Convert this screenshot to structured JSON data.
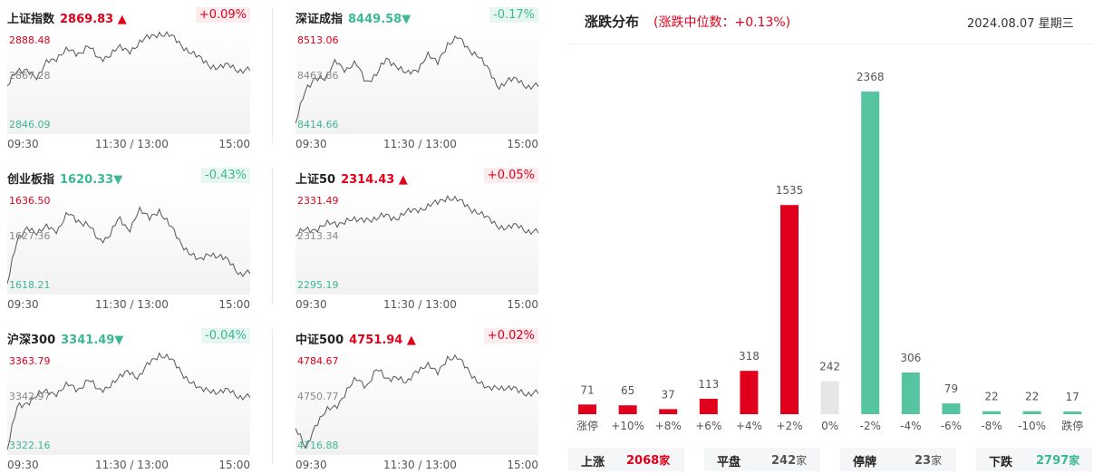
{
  "indices": [
    {
      "name": "上证指数",
      "value": "2869.83",
      "arrow": "▲",
      "dir": "up",
      "change": "+0.09%",
      "high": "2888.48",
      "mid": "2867.28",
      "low": "2846.09"
    },
    {
      "name": "深证成指",
      "value": "8449.58",
      "arrow": "▼",
      "dir": "down",
      "change": "-0.17%",
      "high": "8513.06",
      "mid": "8463.86",
      "low": "8414.66"
    },
    {
      "name": "创业板指",
      "value": "1620.33",
      "arrow": "▼",
      "dir": "down",
      "change": "-0.43%",
      "high": "1636.50",
      "mid": "1627.36",
      "low": "1618.21"
    },
    {
      "name": "上证50",
      "value": "2314.43",
      "arrow": "▲",
      "dir": "up",
      "change": "+0.05%",
      "high": "2331.49",
      "mid": "2313.34",
      "low": "2295.19"
    },
    {
      "name": "沪深300",
      "value": "3341.49",
      "arrow": "▼",
      "dir": "down",
      "change": "-0.04%",
      "high": "3363.79",
      "mid": "3342.97",
      "low": "3322.16"
    },
    {
      "name": "中证500",
      "value": "4751.94",
      "arrow": "▲",
      "dir": "up",
      "change": "+0.02%",
      "high": "4784.67",
      "mid": "4750.77",
      "low": "4716.88"
    }
  ],
  "time_axis": [
    "09:30",
    "11:30 / 13:00",
    "15:00"
  ],
  "distribution": {
    "title": "涨跌分布",
    "median_text": "(涨跌中位数：+0.13%)",
    "date": "2024.08.07 星期三",
    "colors": {
      "up": "#e0001b",
      "flat": "#e6e6e6",
      "down": "#56c3a1"
    }
  },
  "chart_data": {
    "type": "bar",
    "title": "涨跌分布",
    "categories": [
      "涨停",
      "+10%",
      "+8%",
      "+6%",
      "+4%",
      "+2%",
      "0%",
      "-2%",
      "-4%",
      "-6%",
      "-8%",
      "-10%",
      "跌停"
    ],
    "values": [
      71,
      65,
      37,
      113,
      318,
      1535,
      242,
      2368,
      306,
      79,
      22,
      22,
      17
    ],
    "groups": [
      "up",
      "up",
      "up",
      "up",
      "up",
      "up",
      "flat",
      "down",
      "down",
      "down",
      "down",
      "down",
      "down"
    ]
  },
  "summary": [
    {
      "label": "上涨",
      "value": "2068",
      "unit": "家",
      "dir": "up"
    },
    {
      "label": "平盘",
      "value": "242",
      "unit": "家",
      "dir": "flat"
    },
    {
      "label": "停牌",
      "value": "23",
      "unit": "家",
      "dir": "flat"
    },
    {
      "label": "下跌",
      "value": "2797",
      "unit": "家",
      "dir": "down"
    }
  ]
}
